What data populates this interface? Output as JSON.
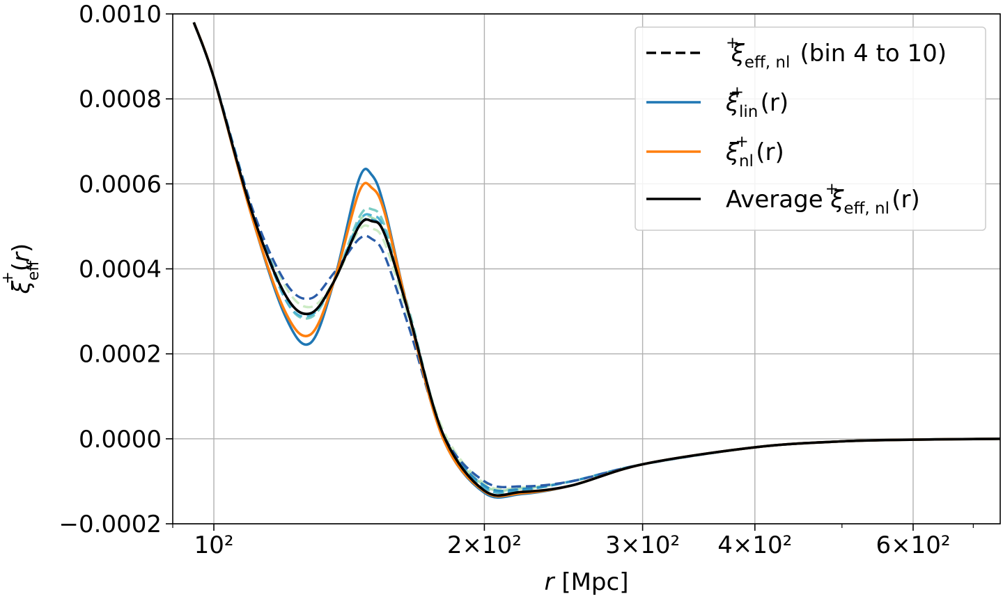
{
  "chart_data": {
    "type": "line",
    "title": "",
    "xlabel": "r [Mpc]",
    "ylabel": "ξ⁺eff(r)",
    "xscale": "log",
    "xlim": [
      90,
      750
    ],
    "ylim": [
      -0.0002,
      0.001
    ],
    "grid": true,
    "x_ticks": [
      {
        "value": 100,
        "label": "10²"
      },
      {
        "value": 200,
        "label": "2×10²"
      },
      {
        "value": 300,
        "label": "3×10²"
      },
      {
        "value": 400,
        "label": "4×10²"
      },
      {
        "value": 600,
        "label": "6×10²"
      }
    ],
    "y_ticks": [
      {
        "value": -0.0002,
        "label": "−0.0002"
      },
      {
        "value": 0.0,
        "label": "0.0000"
      },
      {
        "value": 0.0002,
        "label": "0.0002"
      },
      {
        "value": 0.0004,
        "label": "0.0004"
      },
      {
        "value": 0.0006,
        "label": "0.0006"
      },
      {
        "value": 0.0008,
        "label": "0.0008"
      },
      {
        "value": 0.001,
        "label": "0.0010"
      }
    ],
    "legend": {
      "position": "top-right",
      "entries": [
        {
          "base": "ξ",
          "sup": "+",
          "sub": "eff, nl",
          "tail": " (bin 4 to 10)",
          "color": "#000000",
          "dash": true
        },
        {
          "base": "ξ",
          "sup": "+",
          "sub": "lin",
          "tail": "(r)",
          "color": "#1f77b4",
          "dash": false
        },
        {
          "base": "ξ",
          "sup": "+",
          "sub": "nl",
          "tail": "(r)",
          "color": "#ff7f0e",
          "dash": false
        },
        {
          "prefix": "Average ",
          "base": "ξ",
          "sup": "+",
          "sub": "eff, nl",
          "tail": "(r)",
          "color": "#000000",
          "dash": false
        }
      ]
    },
    "series": [
      {
        "name": "bin 4",
        "style": "dashed",
        "color": "#ccebc5",
        "x": [
          95,
          100,
          110,
          120,
          128,
          136,
          145,
          150,
          155,
          165,
          180,
          200,
          220,
          250,
          300,
          400,
          500,
          600,
          750
        ],
        "y": [
          0.00098,
          0.00085,
          0.00055,
          0.00036,
          0.00031,
          0.00037,
          0.00049,
          0.000495,
          0.00046,
          0.00028,
          2e-05,
          -0.000105,
          -0.000115,
          -0.0001,
          -6e-05,
          -2e-05,
          -6e-06,
          -2e-06,
          0.0
        ]
      },
      {
        "name": "bin 5",
        "style": "dashed",
        "color": "#a8ddb5",
        "x": [
          95,
          100,
          110,
          120,
          128,
          136,
          145,
          150,
          155,
          165,
          180,
          200,
          220,
          250,
          300,
          400,
          500,
          600,
          750
        ],
        "y": [
          0.00098,
          0.00085,
          0.00055,
          0.00034,
          0.000295,
          0.00037,
          0.00051,
          0.00052,
          0.00048,
          0.00029,
          1e-05,
          -0.00011,
          -0.000117,
          -0.0001,
          -6e-05,
          -2e-05,
          -6e-06,
          -2e-06,
          0.0
        ]
      },
      {
        "name": "bin 6",
        "style": "dashed",
        "color": "#7bccc4",
        "x": [
          95,
          100,
          110,
          120,
          128,
          136,
          145,
          150,
          155,
          165,
          180,
          200,
          220,
          250,
          300,
          400,
          500,
          600,
          750
        ],
        "y": [
          0.00098,
          0.00085,
          0.00055,
          0.00033,
          0.000285,
          0.00037,
          0.00052,
          0.00054,
          0.0005,
          0.0003,
          1e-05,
          -0.000115,
          -0.00012,
          -0.0001,
          -6e-05,
          -2e-05,
          -6e-06,
          -2e-06,
          0.0
        ]
      },
      {
        "name": "bin 7",
        "style": "dashed",
        "color": "#4eb3d3",
        "x": [
          95,
          100,
          110,
          120,
          128,
          136,
          145,
          150,
          155,
          165,
          180,
          200,
          220,
          250,
          300,
          400,
          500,
          600,
          750
        ],
        "y": [
          0.00098,
          0.00085,
          0.00055,
          0.00033,
          0.00029,
          0.00037,
          0.00051,
          0.000525,
          0.00049,
          0.00029,
          1e-05,
          -0.000115,
          -0.00012,
          -0.0001,
          -6e-05,
          -2e-05,
          -6e-06,
          -2e-06,
          0.0
        ]
      },
      {
        "name": "bin 8",
        "style": "dashed",
        "color": "#2b8cbe",
        "x": [
          95,
          100,
          110,
          120,
          128,
          136,
          145,
          150,
          155,
          165,
          180,
          200,
          220,
          250,
          300,
          400,
          500,
          600,
          750
        ],
        "y": [
          0.00098,
          0.00085,
          0.00055,
          0.00034,
          0.000295,
          0.00037,
          0.0005,
          0.000515,
          0.00048,
          0.00029,
          1e-05,
          -0.00011,
          -0.000118,
          -0.0001,
          -6e-05,
          -2e-05,
          -6e-06,
          -2e-06,
          0.0
        ]
      },
      {
        "name": "bin 10",
        "style": "dashed",
        "color": "#2a5ca8",
        "x": [
          95,
          100,
          110,
          120,
          128,
          136,
          145,
          150,
          155,
          165,
          180,
          200,
          220,
          250,
          300,
          400,
          500,
          600,
          750
        ],
        "y": [
          0.00098,
          0.00085,
          0.00055,
          0.00037,
          0.00033,
          0.00039,
          0.00047,
          0.00047,
          0.00043,
          0.00026,
          1e-05,
          -0.0001,
          -0.000112,
          -0.0001,
          -6e-05,
          -2e-05,
          -6e-06,
          -2e-06,
          0.0
        ]
      },
      {
        "name": "ξ⁺lin(r)",
        "style": "solid",
        "color": "#1f77b4",
        "x": [
          95,
          100,
          110,
          120,
          128,
          136,
          145,
          150,
          155,
          165,
          180,
          200,
          220,
          250,
          300,
          400,
          500,
          600,
          750
        ],
        "y": [
          0.00098,
          0.00085,
          0.00053,
          0.00029,
          0.000225,
          0.00037,
          0.00061,
          0.00062,
          0.00054,
          0.00029,
          0.0,
          -0.000127,
          -0.00013,
          -0.00011,
          -6e-05,
          -2e-05,
          -6e-06,
          -2e-06,
          0.0
        ]
      },
      {
        "name": "ξ⁺nl(r)",
        "style": "solid",
        "color": "#ff7f0e",
        "x": [
          95,
          100,
          110,
          120,
          128,
          136,
          145,
          150,
          155,
          165,
          180,
          200,
          220,
          250,
          300,
          400,
          500,
          600,
          750
        ],
        "y": [
          0.00098,
          0.00085,
          0.00053,
          0.0003,
          0.000245,
          0.00037,
          0.00058,
          0.00059,
          0.00053,
          0.00029,
          0.0,
          -0.000124,
          -0.000128,
          -0.00011,
          -6e-05,
          -2e-05,
          -6e-06,
          -2e-06,
          0.0
        ]
      },
      {
        "name": "Average ξ⁺eff,nl(r)",
        "style": "solid",
        "color": "#000000",
        "x": [
          95,
          100,
          110,
          120,
          128,
          136,
          145,
          150,
          155,
          165,
          180,
          200,
          220,
          250,
          300,
          400,
          500,
          600,
          750
        ],
        "y": [
          0.00098,
          0.00085,
          0.00054,
          0.00034,
          0.000295,
          0.00037,
          0.0005,
          0.000512,
          0.00048,
          0.00029,
          1e-05,
          -0.000122,
          -0.000125,
          -0.00011,
          -6e-05,
          -2e-05,
          -6e-06,
          -2e-06,
          0.0
        ]
      }
    ]
  }
}
